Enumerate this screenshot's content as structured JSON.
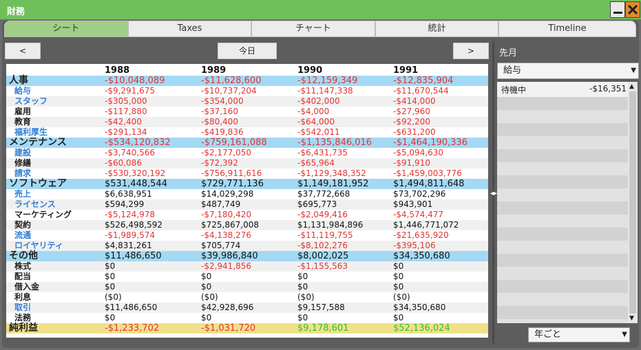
{
  "window": {
    "title": "財務"
  },
  "tabs": [
    "シート",
    "Taxes",
    "チャート",
    "統計",
    "Timeline"
  ],
  "nav": {
    "prev": "<",
    "today": "今日",
    "next": ">"
  },
  "years": [
    "1988",
    "1989",
    "1990",
    "1991"
  ],
  "rows": [
    {
      "label": "人事",
      "kind": "cat",
      "values": [
        "-$10,048,089",
        "-$11,628,600",
        "-$12,159,349",
        "-$12,835,904"
      ]
    },
    {
      "label": "給与",
      "kind": "blue",
      "values": [
        "-$9,291,675",
        "-$10,737,204",
        "-$11,147,338",
        "-$11,670,544"
      ]
    },
    {
      "label": "スタッフ",
      "kind": "blue",
      "values": [
        "-$305,000",
        "-$354,000",
        "-$402,000",
        "-$414,000"
      ]
    },
    {
      "label": "雇用",
      "kind": "sub",
      "values": [
        "-$117,880",
        "-$37,160",
        "-$4,000",
        "-$27,960"
      ]
    },
    {
      "label": "教育",
      "kind": "sub",
      "values": [
        "-$42,400",
        "-$80,400",
        "-$64,000",
        "-$92,200"
      ]
    },
    {
      "label": "福利厚生",
      "kind": "blue",
      "values": [
        "-$291,134",
        "-$419,836",
        "-$542,011",
        "-$631,200"
      ]
    },
    {
      "label": "メンテナンス",
      "kind": "cat",
      "values": [
        "-$534,120,832",
        "-$759,161,088",
        "-$1,135,846,016",
        "-$1,464,190,336"
      ]
    },
    {
      "label": "建設",
      "kind": "blue",
      "values": [
        "-$3,740,566",
        "-$2,177,050",
        "-$6,431,735",
        "-$5,094,630"
      ]
    },
    {
      "label": "修繕",
      "kind": "sub",
      "values": [
        "-$60,086",
        "-$72,392",
        "-$65,964",
        "-$91,910"
      ]
    },
    {
      "label": "請求",
      "kind": "blue",
      "values": [
        "-$530,320,192",
        "-$756,911,616",
        "-$1,129,348,352",
        "-$1,459,003,776"
      ]
    },
    {
      "label": "ソフトウェア",
      "kind": "cat",
      "values": [
        "$531,448,544",
        "$729,771,136",
        "$1,149,181,952",
        "$1,494,811,648"
      ]
    },
    {
      "label": "売上",
      "kind": "blue",
      "values": [
        "$6,638,951",
        "$14,029,298",
        "$37,772,668",
        "$73,702,296"
      ]
    },
    {
      "label": "ライセンス",
      "kind": "blue",
      "values": [
        "$594,299",
        "$487,749",
        "$695,773",
        "$943,901"
      ]
    },
    {
      "label": "マーケティング",
      "kind": "sub",
      "values": [
        "-$5,124,978",
        "-$7,180,420",
        "-$2,049,416",
        "-$4,574,477"
      ]
    },
    {
      "label": "契約",
      "kind": "sub",
      "values": [
        "$526,498,592",
        "$725,867,008",
        "$1,131,984,896",
        "$1,446,771,072"
      ]
    },
    {
      "label": "流通",
      "kind": "blue",
      "values": [
        "-$1,989,574",
        "-$4,138,276",
        "-$11,119,755",
        "-$21,635,920"
      ]
    },
    {
      "label": "ロイヤリティ",
      "kind": "blue",
      "values": [
        "$4,831,261",
        "$705,774",
        "-$8,102,276",
        "-$395,106"
      ]
    },
    {
      "label": "その他",
      "kind": "cat",
      "values": [
        "$11,486,650",
        "$39,986,840",
        "$8,002,025",
        "$34,350,680"
      ]
    },
    {
      "label": "株式",
      "kind": "sub",
      "values": [
        "$0",
        "-$2,941,856",
        "-$1,155,563",
        "$0"
      ]
    },
    {
      "label": "配当",
      "kind": "sub",
      "values": [
        "$0",
        "$0",
        "$0",
        "$0"
      ]
    },
    {
      "label": "借入金",
      "kind": "sub",
      "values": [
        "$0",
        "$0",
        "$0",
        "$0"
      ]
    },
    {
      "label": "利息",
      "kind": "sub",
      "values": [
        "($0)",
        "($0)",
        "($0)",
        "($0)"
      ]
    },
    {
      "label": "取引",
      "kind": "blue",
      "values": [
        "$11,486,650",
        "$42,928,696",
        "$9,157,588",
        "$34,350,680"
      ]
    },
    {
      "label": "法務",
      "kind": "sub",
      "values": [
        "$0",
        "$0",
        "$0",
        "$0"
      ]
    },
    {
      "label": "純利益",
      "kind": "net",
      "values": [
        "-$1,233,702",
        "-$1,031,720",
        "$9,178,601",
        "$52,136,024"
      ]
    }
  ],
  "right": {
    "title": "先月",
    "category_select": "給与",
    "items": [
      {
        "name": "待機中",
        "amount": "-$16,351"
      }
    ],
    "period_select": "年ごと"
  },
  "colors": {
    "titlebar": "#6fc05a",
    "active_tab": "#9fce86",
    "category_highlight": "#a3d9f4",
    "net_highlight": "#f1e08a",
    "negative": "#e33434",
    "positive": "#2fc22a",
    "link_label": "#2f7fd8"
  }
}
